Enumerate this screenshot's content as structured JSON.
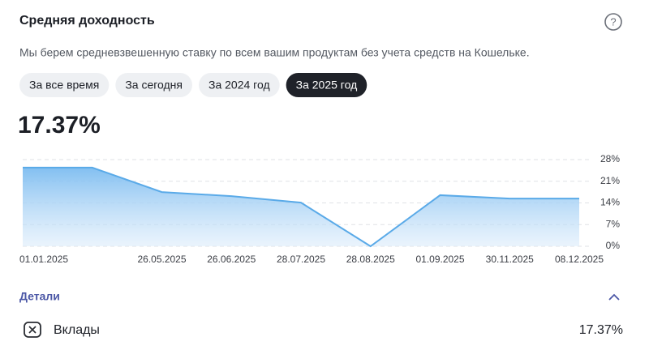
{
  "header": {
    "title": "Средняя доходность",
    "help": "?"
  },
  "description": "Мы берем средневзвешенную ставку по всем вашим продуктам без учета средств на Кошельке.",
  "tabs": {
    "items": [
      "За все время",
      "За сегодня",
      "За 2024 год",
      "За 2025 год"
    ],
    "selected": 3
  },
  "summary": {
    "value": "17.37%"
  },
  "chart_data": {
    "type": "area",
    "categories": [
      "01.01.2025",
      null,
      "26.05.2025",
      "26.06.2025",
      "28.07.2025",
      "28.08.2025",
      "01.09.2025",
      "30.11.2025",
      "08.12.2025"
    ],
    "values": [
      25.4,
      25.4,
      17.5,
      16.2,
      14.1,
      0,
      16.5,
      15.4,
      15.4
    ],
    "color": "#5aaae8",
    "ylim": [
      0,
      28
    ],
    "yticks": [
      {
        "value": 0,
        "label": "0%"
      },
      {
        "value": 7,
        "label": "7%"
      },
      {
        "value": 14,
        "label": "14%"
      },
      {
        "value": 21,
        "label": "21%"
      },
      {
        "value": 28,
        "label": "28%"
      }
    ],
    "grid": true
  },
  "details": {
    "title": "Детали",
    "rows": [
      {
        "label": "Вклады",
        "value": "17.37%"
      }
    ]
  }
}
